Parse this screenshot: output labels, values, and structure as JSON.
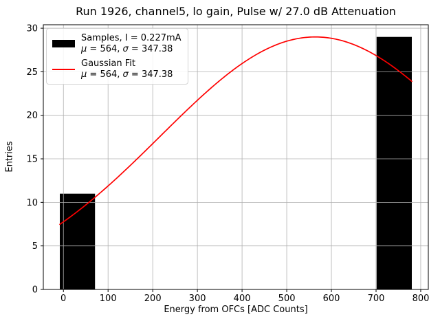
{
  "chart_data": {
    "type": "histogram",
    "title": "Run 1926, channel5, lo gain, Pulse w/ 27.0 dB Attenuation",
    "xlabel": "Energy from OFCs [ADC Counts]",
    "ylabel": "Entries",
    "xlim": [
      -45,
      817
    ],
    "ylim": [
      0,
      30.4
    ],
    "x_ticks": [
      0,
      100,
      200,
      300,
      400,
      500,
      600,
      700,
      800
    ],
    "y_ticks": [
      0,
      5,
      10,
      15,
      20,
      25,
      30
    ],
    "grid": true,
    "colors": {
      "bar": "#000000",
      "fit": "#ff0000",
      "grid": "#b0b0b0",
      "spine": "#000000"
    },
    "bars": [
      {
        "x_start": -8,
        "x_end": 70.8,
        "entries": 11
      },
      {
        "x_start": 701.2,
        "x_end": 780,
        "entries": 29
      }
    ],
    "gaussian_fit": {
      "amplitude": 29,
      "mu": 564,
      "sigma": 347.38,
      "x_start": -8,
      "x_end": 780
    },
    "legend": {
      "position": "upper left",
      "entries": [
        {
          "swatch": "patch",
          "color": "#000000",
          "label": "Samples, I = 0.227mA",
          "stats": "μ = 564, σ = 347.38"
        },
        {
          "swatch": "line",
          "color": "#ff0000",
          "label": "Gaussian Fit",
          "stats": "μ = 564, σ = 347.38"
        }
      ]
    }
  }
}
